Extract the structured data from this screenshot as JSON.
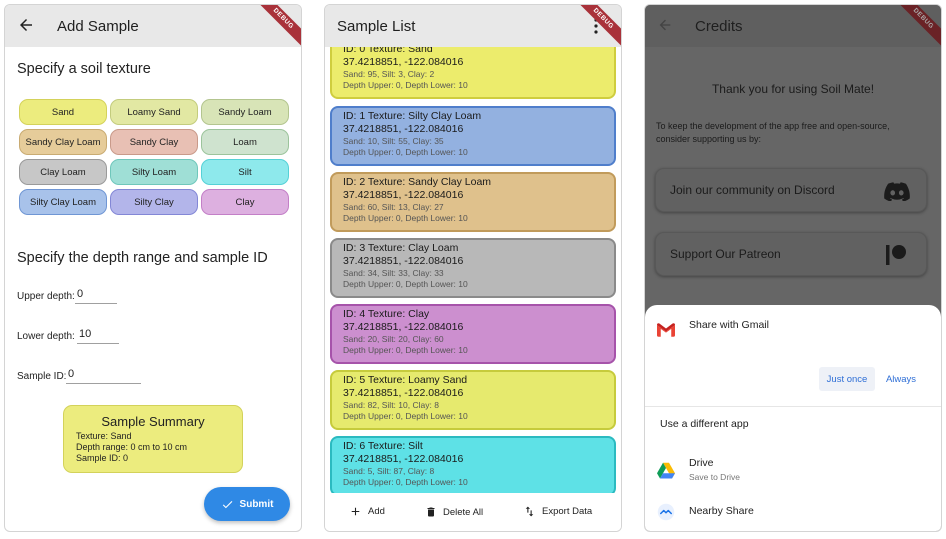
{
  "add_sample": {
    "title": "Add Sample",
    "debug_banner": "DEBUG",
    "texture_heading": "Specify a soil texture",
    "textures": [
      {
        "label": "Sand",
        "fill": "#ecec7e",
        "border": "#d4d25a"
      },
      {
        "label": "Loamy Sand",
        "fill": "#e2e8a3",
        "border": "#c3cc7d"
      },
      {
        "label": "Sandy Loam",
        "fill": "#d8e4b7",
        "border": "#b3c58f"
      },
      {
        "label": "Sandy Clay Loam",
        "fill": "#e6cc9a",
        "border": "#c9ab72"
      },
      {
        "label": "Sandy Clay",
        "fill": "#e8c0b4",
        "border": "#c99a8a"
      },
      {
        "label": "Loam",
        "fill": "#cfe3cf",
        "border": "#9cc49c"
      },
      {
        "label": "Clay Loam",
        "fill": "#c7c7c7",
        "border": "#9a9a9a"
      },
      {
        "label": "Silty Loam",
        "fill": "#9fdfd6",
        "border": "#6fc7bb"
      },
      {
        "label": "Silt",
        "fill": "#8ee9ec",
        "border": "#55d1d6"
      },
      {
        "label": "Silty Clay Loam",
        "fill": "#a8c2ea",
        "border": "#6f96d4"
      },
      {
        "label": "Silty Clay",
        "fill": "#b3b5ea",
        "border": "#8387d6"
      },
      {
        "label": "Clay",
        "fill": "#ddb0e0",
        "border": "#c37fc7"
      }
    ],
    "depth_heading": "Specify the depth range and sample ID",
    "upper_label": "Upper depth:",
    "upper_value": "0",
    "lower_label": "Lower depth:",
    "lower_value": "10",
    "id_label": "Sample ID:",
    "id_value": "0",
    "summary": {
      "title": "Sample Summary",
      "texture_line": "Texture:  Sand",
      "depth_line": "Depth range:  0 cm to 10 cm",
      "id_line": "Sample ID:  0"
    },
    "submit_label": "Submit"
  },
  "sample_list": {
    "title": "Sample List",
    "debug_banner": "DEBUG",
    "samples": [
      {
        "header": "ID: 0    Texture: Sand",
        "coords": "37.4218851, -122.084016",
        "composition": "Sand: 95, Silt: 3, Clay: 2",
        "depth": "Depth Upper: 0, Depth Lower: 10",
        "fill": "#ecec6c",
        "border": "#cfcd3e"
      },
      {
        "header": "ID: 1    Texture: Silty Clay Loam",
        "coords": "37.4218851, -122.084016",
        "composition": "Sand: 10, Silt: 55, Clay: 35",
        "depth": "Depth Upper: 0, Depth Lower: 10",
        "fill": "#93b1e0",
        "border": "#4f7ecb"
      },
      {
        "header": "ID: 2    Texture: Sandy Clay Loam",
        "coords": "37.4218851, -122.084016",
        "composition": "Sand: 60, Silt: 13, Clay: 27",
        "depth": "Depth Upper: 0, Depth Lower: 10",
        "fill": "#dfc18c",
        "border": "#c19b5b"
      },
      {
        "header": "ID: 3    Texture: Clay Loam",
        "coords": "37.4218851, -122.084016",
        "composition": "Sand: 34, Silt: 33, Clay: 33",
        "depth": "Depth Upper: 0, Depth Lower: 10",
        "fill": "#b8b8b8",
        "border": "#8a8a8a"
      },
      {
        "header": "ID: 4    Texture: Clay",
        "coords": "37.4218851, -122.084016",
        "composition": "Sand: 20, Silt: 20, Clay: 60",
        "depth": "Depth Upper: 0, Depth Lower: 10",
        "fill": "#cc8fcf",
        "border": "#a653aa"
      },
      {
        "header": "ID: 5    Texture: Loamy Sand",
        "coords": "37.4218851, -122.084016",
        "composition": "Sand: 82, Silt: 10, Clay: 8",
        "depth": "Depth Upper: 0, Depth Lower: 10",
        "fill": "#e6ea6e",
        "border": "#c6cb3c"
      },
      {
        "header": "ID: 6    Texture: Silt",
        "coords": "37.4218851, -122.084016",
        "composition": "Sand: 5, Silt: 87, Clay: 8",
        "depth": "Depth Upper: 0, Depth Lower: 10",
        "fill": "#5ee1e6",
        "border": "#2bbac0"
      }
    ],
    "actions": {
      "add_label": "Add",
      "delete_label": "Delete All",
      "export_label": "Export Data"
    }
  },
  "credits": {
    "title": "Credits",
    "debug_banner": "DEBUG",
    "thanks": "Thank you for using Soil Mate!",
    "support_text": "To keep the development of the app free and open-source, consider supporting us by:",
    "discord_label": "Join our community on Discord",
    "patreon_label": "Support Our Patreon",
    "share_sheet": {
      "gmail_label": "Share with Gmail",
      "just_once_label": "Just once",
      "always_label": "Always",
      "different_app_label": "Use a different app",
      "drive_name": "Drive",
      "drive_sub": "Save to Drive",
      "nearby_name": "Nearby Share"
    }
  }
}
